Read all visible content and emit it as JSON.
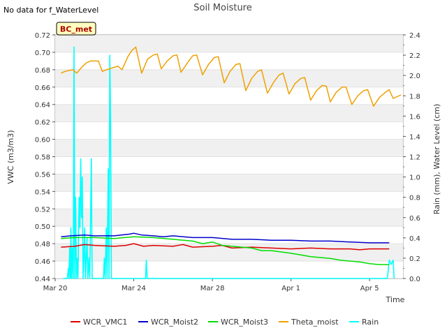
{
  "chart_data": {
    "type": "line",
    "title": "Soil Moisture",
    "note": "No data for f_WaterLevel",
    "site_label": "BC_met",
    "xlabel": "Time",
    "ylabel_left": "VWC (m3/m3)",
    "ylabel_right": "Rain (mm), Water Level (cm)",
    "x_range_days": [
      0,
      17.7
    ],
    "x_ticks": [
      {
        "day": 0,
        "label": "Mar 20"
      },
      {
        "day": 4,
        "label": "Mar 24"
      },
      {
        "day": 8,
        "label": "Mar 28"
      },
      {
        "day": 12,
        "label": "Apr 1"
      },
      {
        "day": 16,
        "label": "Apr 5"
      }
    ],
    "ylim_left": [
      0.44,
      0.72
    ],
    "yticks_left": [
      "0.44",
      "0.46",
      "0.48",
      "0.50",
      "0.52",
      "0.54",
      "0.56",
      "0.58",
      "0.60",
      "0.62",
      "0.64",
      "0.66",
      "0.68",
      "0.70",
      "0.72"
    ],
    "ylim_right": [
      0.0,
      2.4
    ],
    "yticks_right": [
      "0.0",
      "0.2",
      "0.4",
      "0.6",
      "0.8",
      "1.0",
      "1.2",
      "1.4",
      "1.6",
      "1.8",
      "2.0",
      "2.2",
      "2.4"
    ],
    "series": [
      {
        "name": "WCR_VMC1",
        "color": "#dd0000",
        "axis": "left",
        "points": [
          [
            0.3,
            0.476
          ],
          [
            1,
            0.477
          ],
          [
            1.5,
            0.479
          ],
          [
            2,
            0.478
          ],
          [
            3,
            0.477
          ],
          [
            3.6,
            0.478
          ],
          [
            4,
            0.48
          ],
          [
            4.5,
            0.477
          ],
          [
            5,
            0.478
          ],
          [
            6,
            0.477
          ],
          [
            6.5,
            0.479
          ],
          [
            7,
            0.476
          ],
          [
            8,
            0.477
          ],
          [
            8.5,
            0.478
          ],
          [
            9,
            0.475
          ],
          [
            10,
            0.476
          ],
          [
            11,
            0.475
          ],
          [
            12,
            0.474
          ],
          [
            13,
            0.475
          ],
          [
            14,
            0.474
          ],
          [
            15,
            0.474
          ],
          [
            15.5,
            0.473
          ],
          [
            16,
            0.474
          ],
          [
            17,
            0.474
          ]
        ]
      },
      {
        "name": "WCR_Moist2",
        "color": "#0000cc",
        "axis": "left",
        "points": [
          [
            0.3,
            0.488
          ],
          [
            0.8,
            0.489
          ],
          [
            1.5,
            0.49
          ],
          [
            2,
            0.489
          ],
          [
            3,
            0.489
          ],
          [
            3.8,
            0.491
          ],
          [
            4,
            0.492
          ],
          [
            4.4,
            0.49
          ],
          [
            5,
            0.489
          ],
          [
            5.5,
            0.488
          ],
          [
            6,
            0.489
          ],
          [
            7,
            0.487
          ],
          [
            8,
            0.487
          ],
          [
            9,
            0.485
          ],
          [
            10,
            0.485
          ],
          [
            11,
            0.484
          ],
          [
            12,
            0.484
          ],
          [
            13,
            0.483
          ],
          [
            14,
            0.483
          ],
          [
            15,
            0.482
          ],
          [
            16,
            0.481
          ],
          [
            17,
            0.481
          ]
        ]
      },
      {
        "name": "WCR_Moist3",
        "color": "#00dd00",
        "axis": "left",
        "points": [
          [
            0.3,
            0.486
          ],
          [
            1,
            0.487
          ],
          [
            2,
            0.487
          ],
          [
            3,
            0.486
          ],
          [
            4,
            0.488
          ],
          [
            5,
            0.487
          ],
          [
            6,
            0.485
          ],
          [
            7,
            0.483
          ],
          [
            7.5,
            0.48
          ],
          [
            8,
            0.482
          ],
          [
            8.5,
            0.478
          ],
          [
            9,
            0.477
          ],
          [
            10,
            0.475
          ],
          [
            10.5,
            0.472
          ],
          [
            11,
            0.472
          ],
          [
            12,
            0.469
          ],
          [
            12.5,
            0.467
          ],
          [
            13,
            0.465
          ],
          [
            14,
            0.463
          ],
          [
            14.5,
            0.461
          ],
          [
            15,
            0.46
          ],
          [
            15.5,
            0.459
          ],
          [
            16,
            0.457
          ],
          [
            16.5,
            0.456
          ],
          [
            17,
            0.456
          ]
        ]
      },
      {
        "name": "Theta_moist",
        "color": "#f0a000",
        "axis": "left",
        "points": [
          [
            0.3,
            0.676
          ],
          [
            0.5,
            0.678
          ],
          [
            0.9,
            0.68
          ],
          [
            1.1,
            0.676
          ],
          [
            1.4,
            0.684
          ],
          [
            1.6,
            0.688
          ],
          [
            1.8,
            0.69
          ],
          [
            2.2,
            0.69
          ],
          [
            2.4,
            0.678
          ],
          [
            2.6,
            0.68
          ],
          [
            2.9,
            0.682
          ],
          [
            3.2,
            0.684
          ],
          [
            3.4,
            0.68
          ],
          [
            3.7,
            0.695
          ],
          [
            3.9,
            0.702
          ],
          [
            4.1,
            0.706
          ],
          [
            4.4,
            0.676
          ],
          [
            4.7,
            0.692
          ],
          [
            5.0,
            0.697
          ],
          [
            5.2,
            0.698
          ],
          [
            5.4,
            0.681
          ],
          [
            5.7,
            0.69
          ],
          [
            6.0,
            0.696
          ],
          [
            6.2,
            0.697
          ],
          [
            6.4,
            0.677
          ],
          [
            6.8,
            0.69
          ],
          [
            7.0,
            0.696
          ],
          [
            7.2,
            0.697
          ],
          [
            7.5,
            0.674
          ],
          [
            7.8,
            0.686
          ],
          [
            8.1,
            0.694
          ],
          [
            8.3,
            0.695
          ],
          [
            8.6,
            0.665
          ],
          [
            8.9,
            0.678
          ],
          [
            9.2,
            0.686
          ],
          [
            9.4,
            0.687
          ],
          [
            9.7,
            0.656
          ],
          [
            10.0,
            0.67
          ],
          [
            10.3,
            0.678
          ],
          [
            10.5,
            0.68
          ],
          [
            10.8,
            0.653
          ],
          [
            11.1,
            0.665
          ],
          [
            11.4,
            0.674
          ],
          [
            11.6,
            0.676
          ],
          [
            11.9,
            0.652
          ],
          [
            12.2,
            0.664
          ],
          [
            12.5,
            0.67
          ],
          [
            12.7,
            0.671
          ],
          [
            13.0,
            0.645
          ],
          [
            13.3,
            0.656
          ],
          [
            13.6,
            0.662
          ],
          [
            13.8,
            0.661
          ],
          [
            14.0,
            0.643
          ],
          [
            14.3,
            0.654
          ],
          [
            14.6,
            0.66
          ],
          [
            14.8,
            0.66
          ],
          [
            15.1,
            0.64
          ],
          [
            15.4,
            0.65
          ],
          [
            15.7,
            0.656
          ],
          [
            15.9,
            0.657
          ],
          [
            16.2,
            0.638
          ],
          [
            16.5,
            0.648
          ],
          [
            16.8,
            0.654
          ],
          [
            17.0,
            0.657
          ],
          [
            17.2,
            0.647
          ],
          [
            17.4,
            0.649
          ],
          [
            17.6,
            0.651
          ]
        ]
      },
      {
        "name": "Rain",
        "color": "#00ffff",
        "axis": "right",
        "points": [
          [
            0.4,
            0
          ],
          [
            0.62,
            0
          ],
          [
            0.67,
            0.1
          ],
          [
            0.7,
            0
          ],
          [
            0.74,
            0.3
          ],
          [
            0.78,
            0
          ],
          [
            0.8,
            0.5
          ],
          [
            0.84,
            0
          ],
          [
            0.88,
            0.3
          ],
          [
            0.92,
            0
          ],
          [
            0.96,
            2.28
          ],
          [
            1.0,
            0
          ],
          [
            1.04,
            0.8
          ],
          [
            1.08,
            0
          ],
          [
            1.12,
            0.2
          ],
          [
            1.16,
            0
          ],
          [
            1.22,
            0.8
          ],
          [
            1.26,
            0.5
          ],
          [
            1.3,
            1.18
          ],
          [
            1.34,
            0.6
          ],
          [
            1.38,
            1.0
          ],
          [
            1.42,
            0
          ],
          [
            1.46,
            0.2
          ],
          [
            1.5,
            0.5
          ],
          [
            1.54,
            0
          ],
          [
            1.62,
            0.4
          ],
          [
            1.66,
            0
          ],
          [
            1.72,
            0.2
          ],
          [
            1.76,
            0
          ],
          [
            1.84,
            1.18
          ],
          [
            1.88,
            0
          ],
          [
            2.0,
            0
          ],
          [
            2.46,
            0
          ],
          [
            2.5,
            0.2
          ],
          [
            2.54,
            0
          ],
          [
            2.6,
            0.5
          ],
          [
            2.64,
            0
          ],
          [
            2.7,
            1.08
          ],
          [
            2.74,
            0
          ],
          [
            2.78,
            2.2
          ],
          [
            2.82,
            1.6
          ],
          [
            2.86,
            0
          ],
          [
            4.6,
            0
          ],
          [
            4.64,
            0.18
          ],
          [
            4.68,
            0
          ],
          [
            16.9,
            0
          ],
          [
            16.95,
            0.08
          ],
          [
            17.0,
            0.18
          ],
          [
            17.1,
            0.14
          ],
          [
            17.2,
            0.18
          ],
          [
            17.25,
            0
          ]
        ]
      }
    ]
  }
}
